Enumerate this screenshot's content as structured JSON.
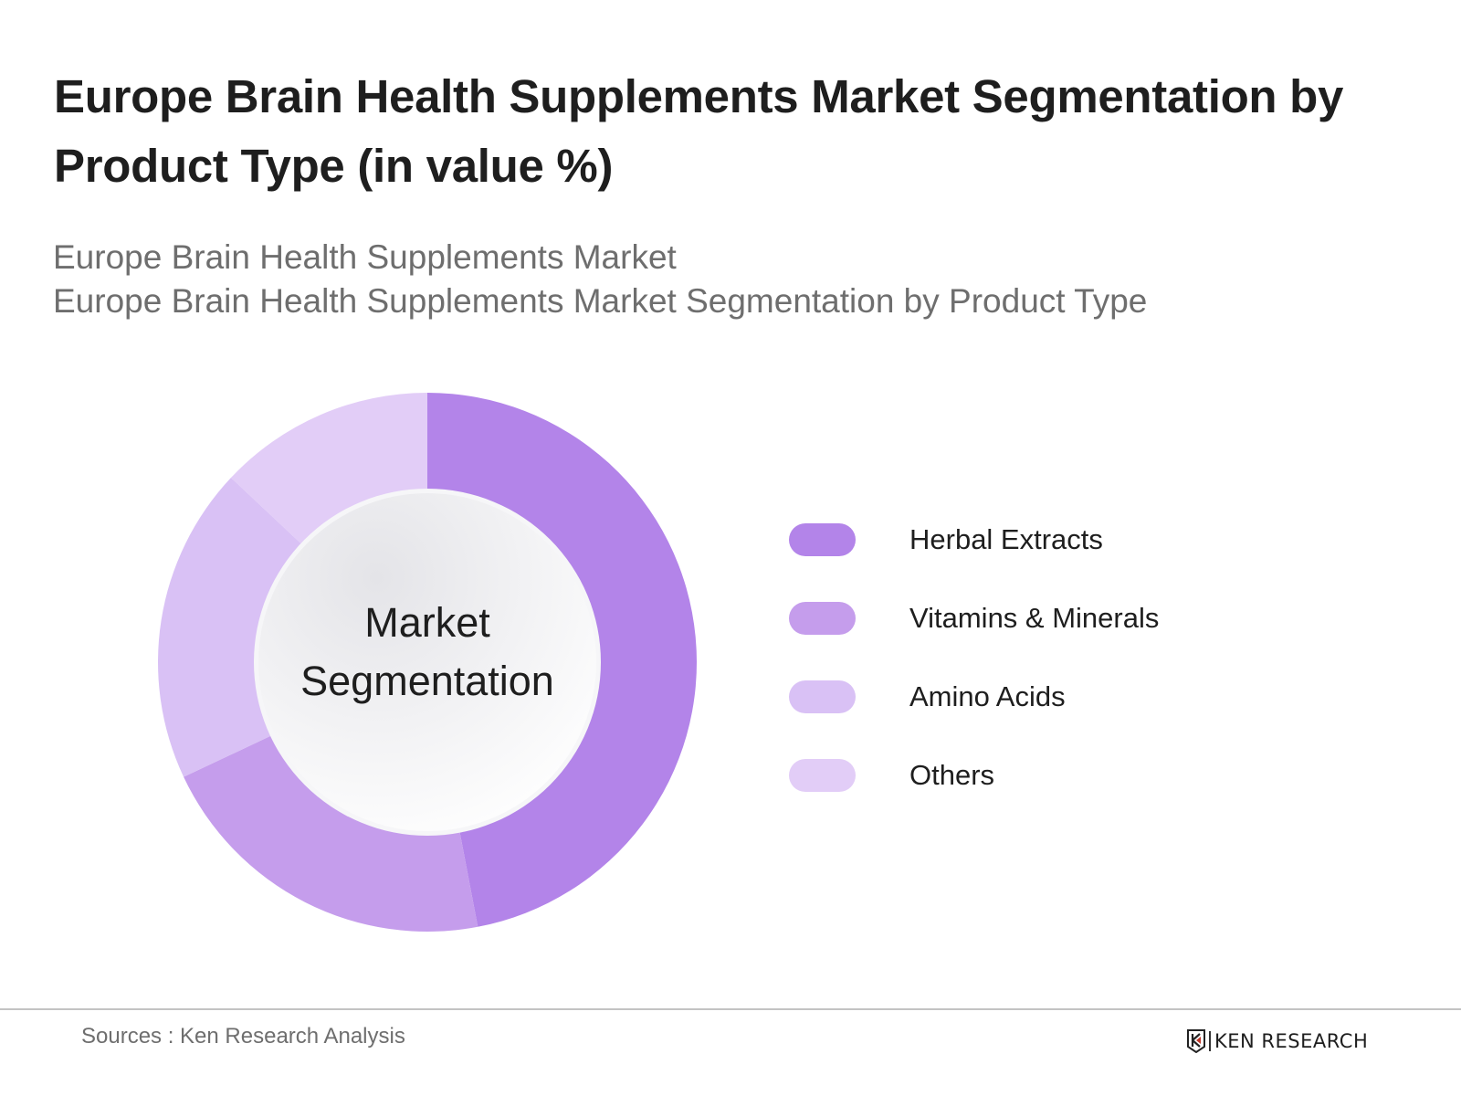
{
  "header": {
    "title": "Europe Brain Health Supplements Market Segmentation by Product Type (in value %)",
    "subtitle_line1": "Europe Brain Health Supplements Market",
    "subtitle_line2": "Europe Brain Health Supplements Market Segmentation by Product Type"
  },
  "center_label": {
    "line1": "Market",
    "line2": "Segmentation"
  },
  "legend": [
    {
      "label": "Herbal Extracts",
      "color": "#b384e9"
    },
    {
      "label": "Vitamins & Minerals",
      "color": "#c59dec"
    },
    {
      "label": "Amino Acids",
      "color": "#d9c1f5"
    },
    {
      "label": "Others",
      "color": "#e2cdf7"
    }
  ],
  "footer": {
    "source": "Sources : Ken Research Analysis",
    "logo_text": "KEN RESEARCH"
  },
  "chart_data": {
    "type": "pie",
    "subtype": "donut",
    "title": "Europe Brain Health Supplements Market Segmentation by Product Type (in value %)",
    "subtitle": "Europe Brain Health Supplements Market Segmentation by Product Type",
    "center_text": "Market Segmentation",
    "categories": [
      "Herbal Extracts",
      "Vitamins & Minerals",
      "Amino Acids",
      "Others"
    ],
    "values": [
      47,
      21,
      19,
      13
    ],
    "colors": [
      "#b384e9",
      "#c59dec",
      "#d9c1f5",
      "#e2cdf7"
    ],
    "start_angle": "12 o'clock, clockwise",
    "legend_position": "right",
    "data_labels_shown": false,
    "source": "Sources : Ken Research Analysis"
  }
}
